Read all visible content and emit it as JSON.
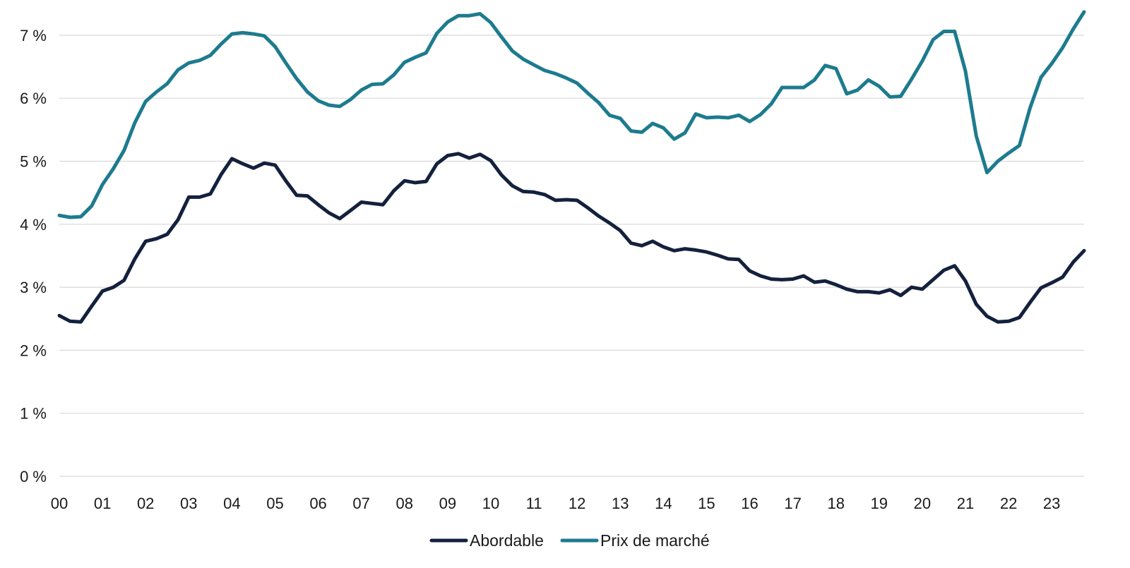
{
  "chart_data": {
    "type": "line",
    "title": "",
    "xlabel": "",
    "ylabel": "",
    "ylim": [
      0,
      7.35
    ],
    "y_ticks": [
      0,
      1,
      2,
      3,
      4,
      5,
      6,
      7
    ],
    "y_tick_labels": [
      "0 %",
      "1 %",
      "2 %",
      "3 %",
      "4 %",
      "5 %",
      "6 %",
      "7 %"
    ],
    "x_ticks": [
      0,
      1,
      2,
      3,
      4,
      5,
      6,
      7,
      8,
      9,
      10,
      11,
      12,
      13,
      14,
      15,
      16,
      17,
      18,
      19,
      20,
      21,
      22,
      23
    ],
    "x_tick_labels": [
      "00",
      "01",
      "02",
      "03",
      "04",
      "05",
      "06",
      "07",
      "08",
      "09",
      "10",
      "11",
      "12",
      "13",
      "14",
      "15",
      "16",
      "17",
      "18",
      "19",
      "20",
      "21",
      "22",
      "23"
    ],
    "xlim": [
      0,
      23.75
    ],
    "grid": "horizontal",
    "legend_position": "bottom-center",
    "x": [
      0.0,
      0.25,
      0.5,
      0.75,
      1.0,
      1.25,
      1.5,
      1.75,
      2.0,
      2.25,
      2.5,
      2.75,
      3.0,
      3.25,
      3.5,
      3.75,
      4.0,
      4.25,
      4.5,
      4.75,
      5.0,
      5.25,
      5.5,
      5.75,
      6.0,
      6.25,
      6.5,
      6.75,
      7.0,
      7.25,
      7.5,
      7.75,
      8.0,
      8.25,
      8.5,
      8.75,
      9.0,
      9.25,
      9.5,
      9.75,
      10.0,
      10.25,
      10.5,
      10.75,
      11.0,
      11.25,
      11.5,
      11.75,
      12.0,
      12.25,
      12.5,
      12.75,
      13.0,
      13.25,
      13.5,
      13.75,
      14.0,
      14.25,
      14.5,
      14.75,
      15.0,
      15.25,
      15.5,
      15.75,
      16.0,
      16.25,
      16.5,
      16.75,
      17.0,
      17.25,
      17.5,
      17.75,
      18.0,
      18.25,
      18.5,
      18.75,
      19.0,
      19.25,
      19.5,
      19.75,
      20.0,
      20.25,
      20.5,
      20.75,
      21.0,
      21.25,
      21.5,
      21.75,
      22.0,
      22.25,
      22.5,
      22.75,
      23.0,
      23.25,
      23.5,
      23.75
    ],
    "series": [
      {
        "name": "Abordable",
        "color": "#14213d",
        "values": [
          2.55,
          2.46,
          2.45,
          2.7,
          2.94,
          3.0,
          3.11,
          3.45,
          3.73,
          3.77,
          3.84,
          4.07,
          4.43,
          4.43,
          4.48,
          4.79,
          5.04,
          4.96,
          4.89,
          4.97,
          4.94,
          4.69,
          4.46,
          4.45,
          4.31,
          4.18,
          4.09,
          4.22,
          4.35,
          4.33,
          4.31,
          4.53,
          4.69,
          4.66,
          4.68,
          4.96,
          5.09,
          5.12,
          5.05,
          5.11,
          5.01,
          4.78,
          4.61,
          4.52,
          4.51,
          4.47,
          4.38,
          4.39,
          4.38,
          4.26,
          4.13,
          4.02,
          3.9,
          3.7,
          3.66,
          3.73,
          3.64,
          3.58,
          3.61,
          3.59,
          3.56,
          3.51,
          3.45,
          3.44,
          3.26,
          3.18,
          3.13,
          3.12,
          3.13,
          3.18,
          3.08,
          3.1,
          3.04,
          2.97,
          2.93,
          2.93,
          2.91,
          2.96,
          2.87,
          3.0,
          2.97,
          3.12,
          3.27,
          3.34,
          3.1,
          2.73,
          2.54,
          2.45,
          2.46,
          2.52,
          2.76,
          2.99,
          3.07,
          3.16,
          3.4,
          3.58
        ]
      },
      {
        "name": "Prix de marché",
        "color": "#1d7b8e",
        "values": [
          4.14,
          4.11,
          4.12,
          4.29,
          4.63,
          4.88,
          5.17,
          5.61,
          5.95,
          6.1,
          6.23,
          6.45,
          6.56,
          6.6,
          6.68,
          6.86,
          7.02,
          7.04,
          7.02,
          6.99,
          6.82,
          6.56,
          6.31,
          6.1,
          5.96,
          5.89,
          5.87,
          5.98,
          6.13,
          6.22,
          6.23,
          6.37,
          6.57,
          6.65,
          6.72,
          7.03,
          7.21,
          7.31,
          7.31,
          7.34,
          7.2,
          6.97,
          6.75,
          6.62,
          6.53,
          6.44,
          6.39,
          6.32,
          6.24,
          6.08,
          5.93,
          5.73,
          5.68,
          5.48,
          5.46,
          5.6,
          5.53,
          5.35,
          5.45,
          5.75,
          5.69,
          5.7,
          5.69,
          5.73,
          5.63,
          5.74,
          5.91,
          6.17,
          6.17,
          6.17,
          6.29,
          6.52,
          6.47,
          6.07,
          6.13,
          6.29,
          6.19,
          6.02,
          6.03,
          6.3,
          6.59,
          6.93,
          7.06,
          7.06,
          6.43,
          5.4,
          4.82,
          5.0,
          5.13,
          5.25,
          5.85,
          6.33,
          6.55,
          6.8,
          7.1,
          7.37
        ]
      }
    ]
  }
}
